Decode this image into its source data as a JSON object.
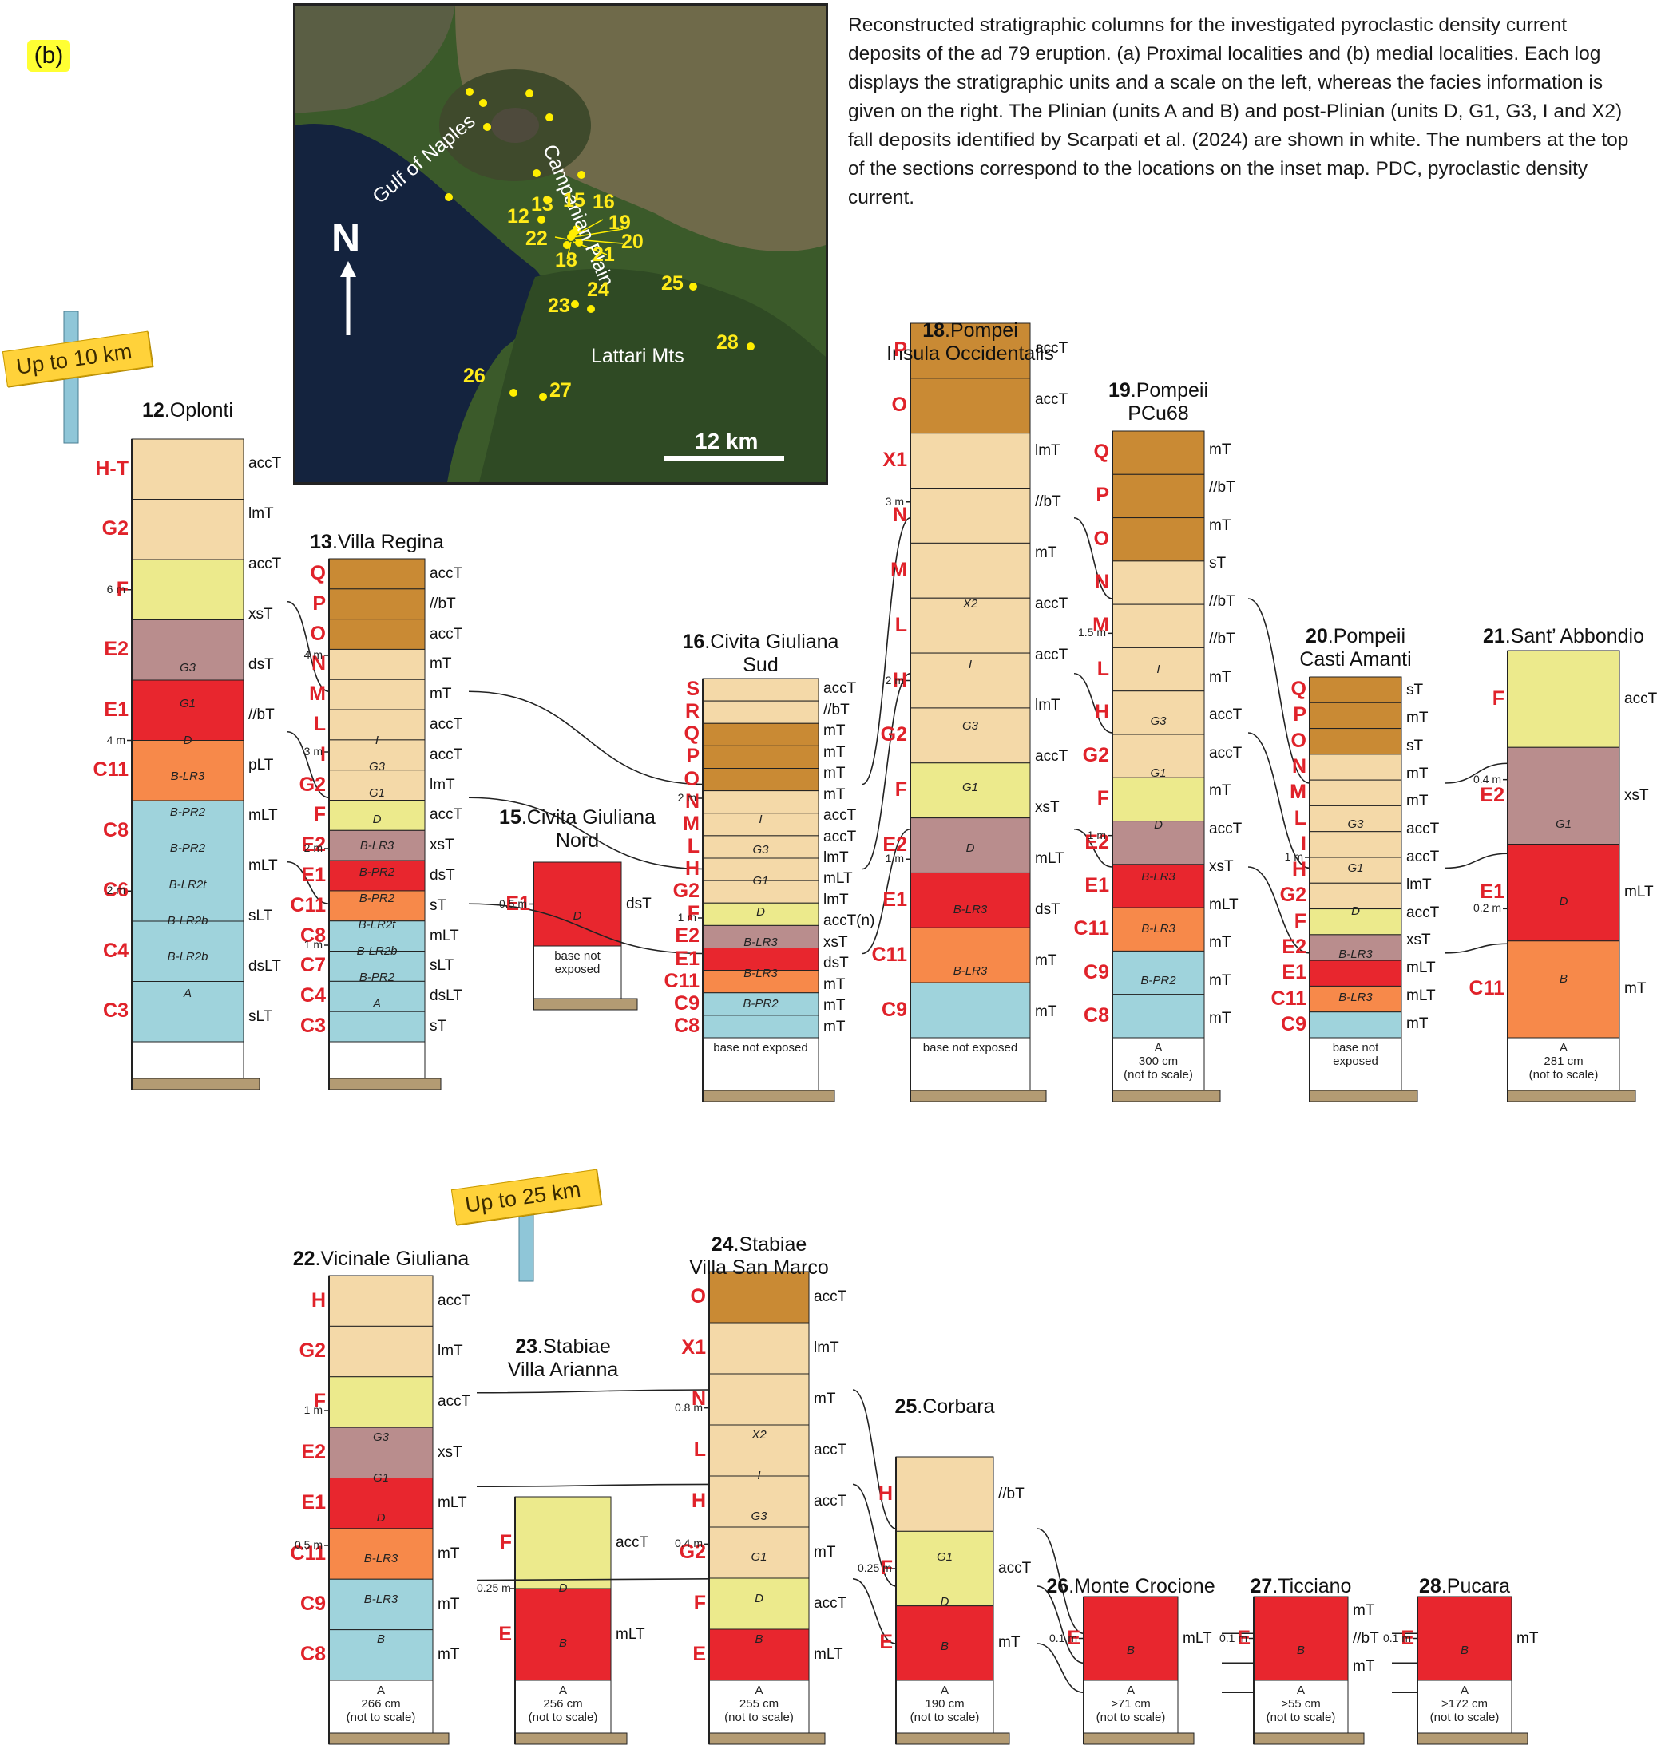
{
  "panel_label": "(b)",
  "caption": "Reconstructed stratigraphic columns for the investigated pyroclastic density current deposits of the ad 79 eruption. (a) Proximal localities and (b) medial localities. Each log displays the stratigraphic units and a scale on the left, whereas the facies information is given on the right. The Plinian (units A and B) and post-Plinian (units D, G1, G3, I and X2) fall deposits identified by Scarpati et al. (2024) are shown in white. The numbers at the top of the sections correspond to the locations on the inset map. PDC, pyroclastic density current.",
  "map": {
    "labels": {
      "gulf": "Gulf of Naples",
      "plain": "Campanian Plain",
      "mountains": "Lattari Mts"
    },
    "north": "N",
    "scale_bar": "12 km",
    "site_numbers": [
      "12",
      "13",
      "15",
      "16",
      "18",
      "19",
      "20",
      "21",
      "22",
      "23",
      "24",
      "25",
      "26",
      "27",
      "28"
    ]
  },
  "signs": {
    "up10": "Up to 10 km",
    "up25": "Up to 25 km"
  },
  "columns": [
    {
      "num": "12",
      "name": "Oplonti",
      "name2": "",
      "units": [
        "H-T",
        "G2",
        "F",
        "E2",
        "E1",
        "C11",
        "C8",
        "C6",
        "C4",
        "C3"
      ],
      "facies": [
        "accT",
        "lmT",
        "accT",
        "xsT",
        "dsT",
        "//bT",
        "pLT",
        "mLT",
        "mLT",
        "sLT",
        "dsLT",
        "sLT"
      ],
      "beds": [
        "G3",
        "G1",
        "D",
        "B-LR3",
        "B-PR2",
        "B-PR2",
        "B-LR2t",
        "B-LR2b",
        "B-LR2b",
        "A"
      ],
      "scale": [
        "6 m",
        "4 m",
        "2 m"
      ]
    },
    {
      "num": "13",
      "name": "Villa Regina",
      "name2": "",
      "units": [
        "Q",
        "P",
        "O",
        "N",
        "M",
        "L",
        "I",
        "G2",
        "F",
        "E2",
        "E1",
        "C11",
        "C8",
        "C7",
        "C4",
        "C3"
      ],
      "facies": [
        "accT",
        "//bT",
        "accT",
        "mT",
        "mT",
        "accT",
        "accT",
        "lmT",
        "accT",
        "xsT",
        "dsT",
        "sT",
        "mLT",
        "sLT",
        "dsLT",
        "sT"
      ],
      "beds": [
        "I",
        "G3",
        "G1",
        "D",
        "B-LR3",
        "B-PR2",
        "B-PR2",
        "B-LR2t",
        "B-LR2b",
        "B-PR2",
        "A"
      ],
      "scale": [
        "4 m",
        "3 m",
        "2 m",
        "1 m"
      ]
    },
    {
      "num": "15",
      "name": "Civita Giuliana",
      "name2": "Nord",
      "units": [
        "E1"
      ],
      "facies": [
        "dsT"
      ],
      "beds": [
        "D"
      ],
      "scale": [
        "0.5 m"
      ],
      "base": "base not exposed"
    },
    {
      "num": "16",
      "name": "Civita Giuliana",
      "name2": "Sud",
      "units": [
        "S",
        "R",
        "Q",
        "P",
        "O",
        "N",
        "M",
        "L",
        "H",
        "G2",
        "F",
        "E2",
        "E1",
        "C11",
        "C9",
        "C8"
      ],
      "facies": [
        "accT",
        "//bT",
        "mT",
        "mT",
        "mT",
        "mT",
        "accT",
        "accT",
        "lmT",
        "mLT",
        "lmT",
        "accT(n)",
        "xsT",
        "dsT",
        "mT",
        "mT",
        "mT"
      ],
      "beds": [
        "I",
        "G3",
        "G1",
        "D",
        "B-LR3",
        "B-LR3",
        "B-PR2"
      ],
      "scale": [
        "2 m",
        "1 m"
      ],
      "base": "base not exposed"
    },
    {
      "num": "18",
      "name": "Pompei",
      "name2": "Insula Occidentalis",
      "units": [
        "P",
        "O",
        "X1",
        "N",
        "M",
        "L",
        "H",
        "G2",
        "F",
        "E2",
        "E1",
        "C11",
        "C9"
      ],
      "facies": [
        "accT",
        "accT",
        "lmT",
        "//bT",
        "mT",
        "accT",
        "accT",
        "lmT",
        "accT",
        "xsT",
        "mLT",
        "dsT",
        "mT",
        "mT"
      ],
      "beds": [
        "X2",
        "I",
        "G3",
        "G1",
        "D",
        "B-LR3",
        "B-LR3"
      ],
      "scale": [
        "3 m",
        "2 m",
        "1 m"
      ],
      "base": "base not exposed"
    },
    {
      "num": "19",
      "name": "Pompeii",
      "name2": "PCu68",
      "units": [
        "Q",
        "P",
        "O",
        "N",
        "M",
        "L",
        "H",
        "G2",
        "F",
        "E2",
        "E1",
        "C11",
        "C9",
        "C8"
      ],
      "facies": [
        "mT",
        "//bT",
        "mT",
        "sT",
        "//bT",
        "//bT",
        "mT",
        "accT",
        "accT",
        "mT",
        "accT",
        "xsT",
        "mLT",
        "mT",
        "mT",
        "mT"
      ],
      "beds": [
        "I",
        "G3",
        "G1",
        "D",
        "B-LR3",
        "B-LR3",
        "B-PR2"
      ],
      "scale": [
        "1.5 m",
        "1 m"
      ],
      "base": "A\n300 cm\n(not to scale)"
    },
    {
      "num": "20",
      "name": "Pompeii",
      "name2": "Casti Amanti",
      "units": [
        "Q",
        "P",
        "O",
        "N",
        "M",
        "L",
        "I",
        "H",
        "G2",
        "F",
        "E2",
        "E1",
        "C11",
        "C9"
      ],
      "facies": [
        "sT",
        "mT",
        "sT",
        "mT",
        "mT",
        "accT",
        "accT",
        "lmT",
        "accT",
        "xsT",
        "mLT",
        "mLT",
        "mT"
      ],
      "beds": [
        "G3",
        "G1",
        "D",
        "B-LR3",
        "B-LR3"
      ],
      "scale": [
        "1 m"
      ],
      "base": "base not exposed"
    },
    {
      "num": "21",
      "name": "Sant’ Abbondio",
      "name2": "",
      "units": [
        "F",
        "E2",
        "E1",
        "C11"
      ],
      "facies": [
        "accT",
        "xsT",
        "mLT",
        "mT"
      ],
      "beds": [
        "G1",
        "D",
        "B"
      ],
      "scale": [
        "0.4 m",
        "0.2 m"
      ],
      "base": "A\n281 cm\n(not to scale)"
    },
    {
      "num": "22",
      "name": "Vicinale Giuliana",
      "name2": "",
      "units": [
        "H",
        "G2",
        "F",
        "E2",
        "E1",
        "C11",
        "C9",
        "C8"
      ],
      "facies": [
        "accT",
        "lmT",
        "accT",
        "xsT",
        "mLT",
        "mT",
        "mT",
        "mT"
      ],
      "beds": [
        "G3",
        "G1",
        "D",
        "B-LR3",
        "B-LR3",
        "B"
      ],
      "scale": [
        "1 m",
        "0.5 m"
      ],
      "base": "A\n266 cm\n(not to scale)"
    },
    {
      "num": "23",
      "name": "Stabiae",
      "name2": "Villa Arianna",
      "units": [
        "F",
        "E"
      ],
      "facies": [
        "accT",
        "mLT"
      ],
      "beds": [
        "D",
        "B"
      ],
      "scale": [
        "0.25 m"
      ],
      "base": "A\n256 cm\n(not to scale)"
    },
    {
      "num": "24",
      "name": "Stabiae",
      "name2": "Villa San Marco",
      "units": [
        "O",
        "X1",
        "N",
        "L",
        "H",
        "G2",
        "F",
        "E"
      ],
      "facies": [
        "accT",
        "lmT",
        "mT",
        "accT",
        "accT",
        "mT",
        "accT",
        "mLT"
      ],
      "beds": [
        "X2",
        "I",
        "G3",
        "G1",
        "D",
        "B"
      ],
      "scale": [
        "0.8 m",
        "0.4 m"
      ],
      "base": "A\n255 cm\n(not to scale)"
    },
    {
      "num": "25",
      "name": "Corbara",
      "name2": "",
      "units": [
        "H",
        "F",
        "E"
      ],
      "facies": [
        "//bT",
        "accT",
        "mT"
      ],
      "beds": [
        "G1",
        "D",
        "B"
      ],
      "scale": [
        "0.25 m"
      ],
      "base": "A\n190 cm\n(not to scale)"
    },
    {
      "num": "26",
      "name": "Monte Crocione",
      "name2": "",
      "units": [
        "E"
      ],
      "facies": [
        "mLT"
      ],
      "beds": [
        "B"
      ],
      "scale": [
        "0.1 m"
      ],
      "base": "A\n>71 cm\n(not to scale)"
    },
    {
      "num": "27",
      "name": "Ticciano",
      "name2": "",
      "units": [
        "E"
      ],
      "facies": [
        "mT",
        "//bT",
        "mT"
      ],
      "beds": [
        "B"
      ],
      "scale": [
        "0.1 m"
      ],
      "base": "A\n>55 cm\n(not to scale)"
    },
    {
      "num": "28",
      "name": "Pucara",
      "name2": "",
      "units": [
        "E"
      ],
      "facies": [
        "mT"
      ],
      "beds": [
        "B"
      ],
      "scale": [
        "0.1 m"
      ],
      "base": "A\n>172 cm\n(not to scale)"
    }
  ],
  "colors": {
    "accT": "#f4d9a8",
    "dsT": "#e8262e",
    "xsT": "#b98d8d",
    "mLT": "#e8262e",
    "pLT": "#f7894a",
    "F": "#ecea8c",
    "brown": "#c98a34",
    "white": "#ffffff",
    "unit_label": "#e0222a"
  }
}
